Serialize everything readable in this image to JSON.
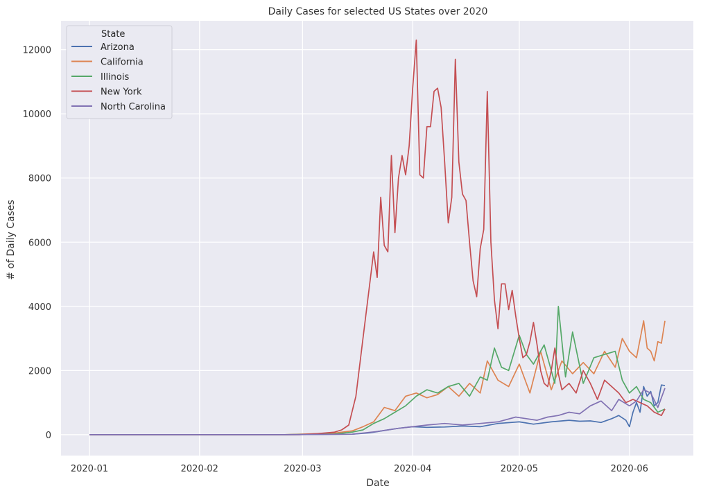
{
  "chart_data": {
    "type": "line",
    "title": "Daily Cases for selected US States over 2020",
    "xlabel": "Date",
    "ylabel": "# of Daily Cases",
    "x_start": "2020-01-01",
    "x_end": "2020-06-11",
    "xlim": [
      "2019-12-24",
      "2020-06-19"
    ],
    "ylim": [
      -650,
      12900
    ],
    "x_ticks": [
      "2020-01-01",
      "2020-02-01",
      "2020-03-01",
      "2020-04-01",
      "2020-05-01",
      "2020-06-01"
    ],
    "x_tick_labels": [
      "2020-01",
      "2020-02",
      "2020-03",
      "2020-04",
      "2020-05",
      "2020-06"
    ],
    "y_ticks": [
      0,
      2000,
      4000,
      6000,
      8000,
      10000,
      12000
    ],
    "y_tick_labels": [
      "0",
      "2000",
      "4000",
      "6000",
      "8000",
      "10000",
      "12000"
    ],
    "grid": true,
    "background": "#eaeaf2",
    "legend": {
      "title": "State",
      "position": "top-left"
    },
    "series": [
      {
        "name": "Arizona",
        "color": "#4c72b0",
        "x": [
          "2020-01-01",
          "2020-02-25",
          "2020-03-15",
          "2020-03-20",
          "2020-03-25",
          "2020-03-28",
          "2020-04-01",
          "2020-04-05",
          "2020-04-10",
          "2020-04-15",
          "2020-04-20",
          "2020-04-25",
          "2020-05-01",
          "2020-05-05",
          "2020-05-10",
          "2020-05-15",
          "2020-05-18",
          "2020-05-21",
          "2020-05-24",
          "2020-05-27",
          "2020-05-29",
          "2020-05-31",
          "2020-06-01",
          "2020-06-02",
          "2020-06-03",
          "2020-06-04",
          "2020-06-05",
          "2020-06-06",
          "2020-06-07",
          "2020-06-08",
          "2020-06-09",
          "2020-06-10",
          "2020-06-11"
        ],
        "y": [
          0,
          0,
          15,
          60,
          150,
          200,
          250,
          230,
          240,
          270,
          250,
          350,
          400,
          330,
          400,
          450,
          420,
          430,
          380,
          500,
          600,
          450,
          250,
          700,
          1000,
          700,
          1500,
          1200,
          1350,
          900,
          1000,
          1550,
          1530
        ]
      },
      {
        "name": "California",
        "color": "#dd8452",
        "x": [
          "2020-01-01",
          "2020-02-25",
          "2020-03-10",
          "2020-03-15",
          "2020-03-18",
          "2020-03-21",
          "2020-03-24",
          "2020-03-27",
          "2020-03-30",
          "2020-04-02",
          "2020-04-05",
          "2020-04-08",
          "2020-04-11",
          "2020-04-14",
          "2020-04-17",
          "2020-04-20",
          "2020-04-22",
          "2020-04-25",
          "2020-04-28",
          "2020-05-01",
          "2020-05-04",
          "2020-05-07",
          "2020-05-10",
          "2020-05-13",
          "2020-05-16",
          "2020-05-19",
          "2020-05-22",
          "2020-05-25",
          "2020-05-28",
          "2020-05-30",
          "2020-06-01",
          "2020-06-03",
          "2020-06-05",
          "2020-06-06",
          "2020-06-07",
          "2020-06-08",
          "2020-06-09",
          "2020-06-10",
          "2020-06-11"
        ],
        "y": [
          0,
          0,
          50,
          120,
          250,
          400,
          850,
          750,
          1200,
          1300,
          1150,
          1250,
          1500,
          1200,
          1600,
          1300,
          2300,
          1700,
          1500,
          2200,
          1300,
          2600,
          1400,
          2300,
          1900,
          2250,
          1900,
          2600,
          2100,
          3000,
          2600,
          2400,
          3550,
          2700,
          2600,
          2300,
          2900,
          2850,
          3550
        ]
      },
      {
        "name": "Illinois",
        "color": "#55a868",
        "x": [
          "2020-01-01",
          "2020-02-25",
          "2020-03-10",
          "2020-03-15",
          "2020-03-18",
          "2020-03-21",
          "2020-03-24",
          "2020-03-27",
          "2020-03-30",
          "2020-04-02",
          "2020-04-05",
          "2020-04-08",
          "2020-04-11",
          "2020-04-14",
          "2020-04-17",
          "2020-04-20",
          "2020-04-22",
          "2020-04-24",
          "2020-04-26",
          "2020-04-28",
          "2020-05-01",
          "2020-05-03",
          "2020-05-05",
          "2020-05-08",
          "2020-05-11",
          "2020-05-12",
          "2020-05-14",
          "2020-05-16",
          "2020-05-19",
          "2020-05-22",
          "2020-05-25",
          "2020-05-28",
          "2020-05-30",
          "2020-06-01",
          "2020-06-03",
          "2020-06-05",
          "2020-06-07",
          "2020-06-09",
          "2020-06-11"
        ],
        "y": [
          0,
          0,
          20,
          80,
          150,
          350,
          500,
          700,
          900,
          1200,
          1400,
          1300,
          1500,
          1600,
          1200,
          1800,
          1700,
          2700,
          2100,
          2000,
          3100,
          2500,
          2200,
          2800,
          1600,
          4000,
          1800,
          3200,
          1600,
          2400,
          2500,
          2600,
          1700,
          1300,
          1500,
          1100,
          1000,
          700,
          800
        ]
      },
      {
        "name": "New York",
        "color": "#c44e52",
        "x": [
          "2020-01-01",
          "2020-02-29",
          "2020-03-05",
          "2020-03-10",
          "2020-03-12",
          "2020-03-14",
          "2020-03-16",
          "2020-03-18",
          "2020-03-20",
          "2020-03-21",
          "2020-03-22",
          "2020-03-23",
          "2020-03-24",
          "2020-03-25",
          "2020-03-26",
          "2020-03-27",
          "2020-03-28",
          "2020-03-29",
          "2020-03-30",
          "2020-03-31",
          "2020-04-01",
          "2020-04-02",
          "2020-04-03",
          "2020-04-04",
          "2020-04-05",
          "2020-04-06",
          "2020-04-07",
          "2020-04-08",
          "2020-04-09",
          "2020-04-10",
          "2020-04-11",
          "2020-04-12",
          "2020-04-13",
          "2020-04-14",
          "2020-04-15",
          "2020-04-16",
          "2020-04-17",
          "2020-04-18",
          "2020-04-19",
          "2020-04-20",
          "2020-04-21",
          "2020-04-22",
          "2020-04-23",
          "2020-04-24",
          "2020-04-25",
          "2020-04-26",
          "2020-04-27",
          "2020-04-28",
          "2020-04-29",
          "2020-04-30",
          "2020-05-01",
          "2020-05-02",
          "2020-05-03",
          "2020-05-04",
          "2020-05-05",
          "2020-05-06",
          "2020-05-07",
          "2020-05-08",
          "2020-05-09",
          "2020-05-10",
          "2020-05-11",
          "2020-05-12",
          "2020-05-13",
          "2020-05-15",
          "2020-05-17",
          "2020-05-19",
          "2020-05-21",
          "2020-05-23",
          "2020-05-25",
          "2020-05-27",
          "2020-05-29",
          "2020-05-31",
          "2020-06-02",
          "2020-06-04",
          "2020-06-06",
          "2020-06-08",
          "2020-06-10",
          "2020-06-11"
        ],
        "y": [
          0,
          0,
          30,
          80,
          150,
          300,
          1200,
          3000,
          4800,
          5700,
          4900,
          7400,
          5900,
          5700,
          8700,
          6300,
          8000,
          8700,
          8100,
          9000,
          10800,
          12300,
          8100,
          8000,
          9600,
          9600,
          10700,
          10800,
          10200,
          8500,
          6600,
          7400,
          11700,
          8500,
          7500,
          7300,
          6000,
          4800,
          4300,
          5800,
          6400,
          10700,
          6000,
          4200,
          3300,
          4700,
          4700,
          3900,
          4500,
          3700,
          3000,
          2400,
          2500,
          2900,
          3500,
          2800,
          2000,
          1600,
          1500,
          2000,
          2700,
          1900,
          1400,
          1600,
          1300,
          2000,
          1600,
          1100,
          1700,
          1500,
          1300,
          1000,
          1100,
          1000,
          900,
          700,
          600,
          800
        ]
      },
      {
        "name": "North Carolina",
        "color": "#8172b3",
        "x": [
          "2020-01-01",
          "2020-02-25",
          "2020-03-15",
          "2020-03-22",
          "2020-03-28",
          "2020-04-01",
          "2020-04-05",
          "2020-04-10",
          "2020-04-15",
          "2020-04-20",
          "2020-04-25",
          "2020-04-30",
          "2020-05-03",
          "2020-05-06",
          "2020-05-09",
          "2020-05-12",
          "2020-05-15",
          "2020-05-18",
          "2020-05-21",
          "2020-05-24",
          "2020-05-27",
          "2020-05-29",
          "2020-06-01",
          "2020-06-03",
          "2020-06-05",
          "2020-06-07",
          "2020-06-09",
          "2020-06-11"
        ],
        "y": [
          0,
          0,
          15,
          100,
          200,
          250,
          300,
          350,
          300,
          350,
          400,
          550,
          500,
          450,
          550,
          600,
          700,
          650,
          900,
          1050,
          750,
          1100,
          900,
          1050,
          1400,
          1300,
          850,
          1450
        ]
      }
    ]
  }
}
